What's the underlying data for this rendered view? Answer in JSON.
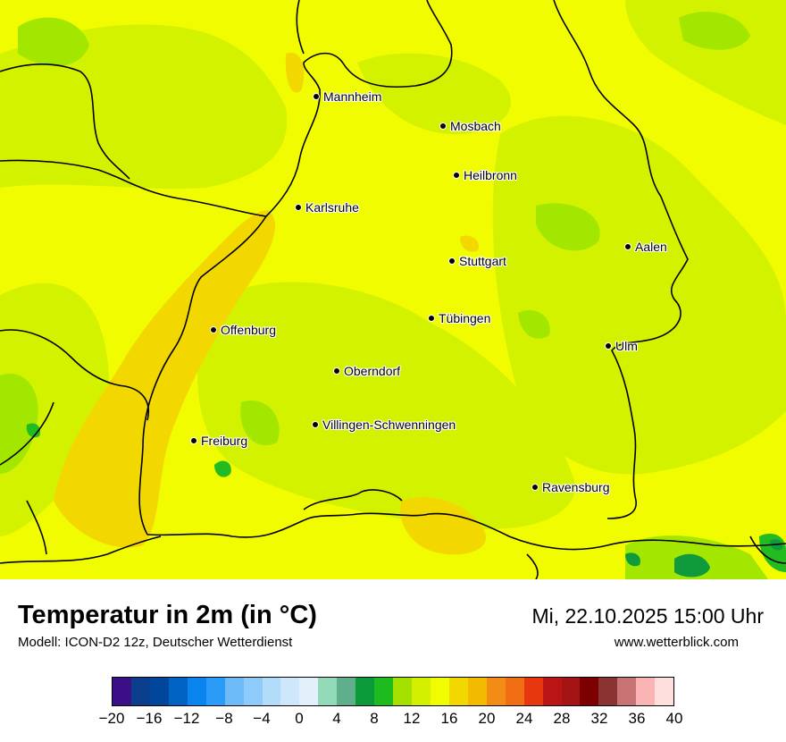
{
  "map": {
    "colors": {
      "base": "#f2fc00",
      "yellow_green": "#d3f200",
      "light_green": "#a3e600",
      "orange_yellow": "#f2d800",
      "green": "#22bb22",
      "dark_green": "#0f9a3c",
      "border_line": "#000000"
    },
    "cities": [
      {
        "name": "Mannheim"
      },
      {
        "name": "Mosbach"
      },
      {
        "name": "Heilbronn"
      },
      {
        "name": "Karlsruhe"
      },
      {
        "name": "Stuttgart"
      },
      {
        "name": "Aalen"
      },
      {
        "name": "Tübingen"
      },
      {
        "name": "Offenburg"
      },
      {
        "name": "Ulm"
      },
      {
        "name": "Oberndorf"
      },
      {
        "name": "Villingen-Schwenningen"
      },
      {
        "name": "Freiburg"
      },
      {
        "name": "Ravensburg"
      }
    ]
  },
  "footer": {
    "title": "Temperatur in 2m (in °C)",
    "subtitle": "Modell: ICON-D2 12z, Deutscher Wetterdienst",
    "datetime": "Mi, 22.10.2025 15:00 Uhr",
    "website": "www.wetterblick.com"
  },
  "colorbar": {
    "colors": [
      "#3b0f85",
      "#0a3d8c",
      "#00479c",
      "#0063c4",
      "#0a84ee",
      "#2a9bf6",
      "#6cbaf8",
      "#8fcbfa",
      "#b3dcfb",
      "#cfe7fb",
      "#e3f0fc",
      "#93dbb8",
      "#5fae8c",
      "#0a9a3a",
      "#1dbb1d",
      "#a3e000",
      "#d2f000",
      "#f2fc00",
      "#f2d800",
      "#f2bb00",
      "#f28c14",
      "#f26e14",
      "#e6370f",
      "#bb1414",
      "#a51414",
      "#7d0000",
      "#8b3232",
      "#c77373",
      "#fbb4b4",
      "#ffdede"
    ],
    "ticks": [
      "−20",
      "−16",
      "−12",
      "−8",
      "−4",
      "0",
      "4",
      "8",
      "12",
      "16",
      "20",
      "24",
      "28",
      "32",
      "36",
      "40"
    ]
  }
}
